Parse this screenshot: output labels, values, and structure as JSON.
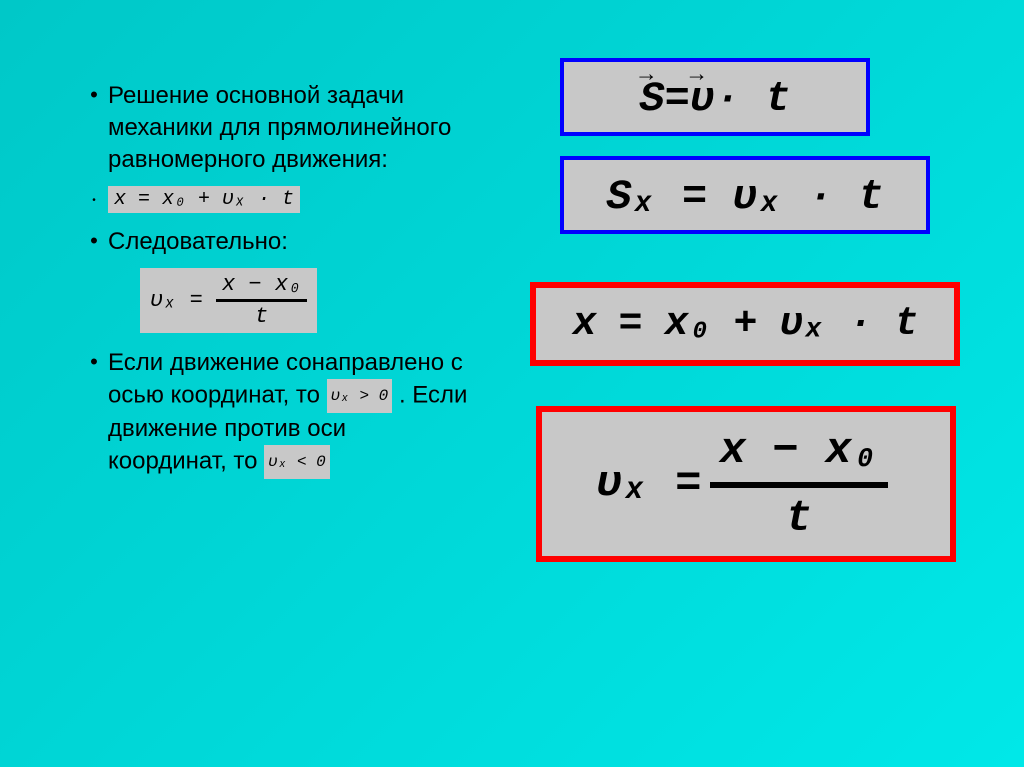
{
  "background": {
    "gradient_start": "#00c8c8",
    "gradient_end": "#00e8e8"
  },
  "left": {
    "b1": "Решение основной задачи механики для прямолинейного равномерного движения:",
    "f1": "x = x₀ + υₓ · t",
    "b2": "Следовательно:",
    "f2_lhs": "υₓ =",
    "f2_num": "x − x₀",
    "f2_den": "t",
    "b3_a": "Если движение сонаправлено с осью координат, то ",
    "b3_cond1": "υₓ > 0",
    "b3_b": " . Если движение против оси координат, то ",
    "b3_cond2": "υₓ < 0"
  },
  "right": {
    "formula1": {
      "lhs": "S",
      "eq": " = ",
      "rhs1": "υ",
      "rhs2": " · t",
      "border": "#0000ff"
    },
    "formula2": {
      "text": "Sₓ = υₓ · t",
      "border": "#0000ff"
    },
    "formula3": {
      "text": "x = x₀ + υₓ · t",
      "border": "#ff0000"
    },
    "formula4": {
      "lhs": "υₓ = ",
      "num": "x − x₀",
      "den": "t",
      "border": "#ff0000"
    }
  },
  "styling": {
    "formula_bg": "#c8c8c8",
    "text_color": "#000000",
    "body_fontsize": 24,
    "formula_font": "Courier New"
  }
}
